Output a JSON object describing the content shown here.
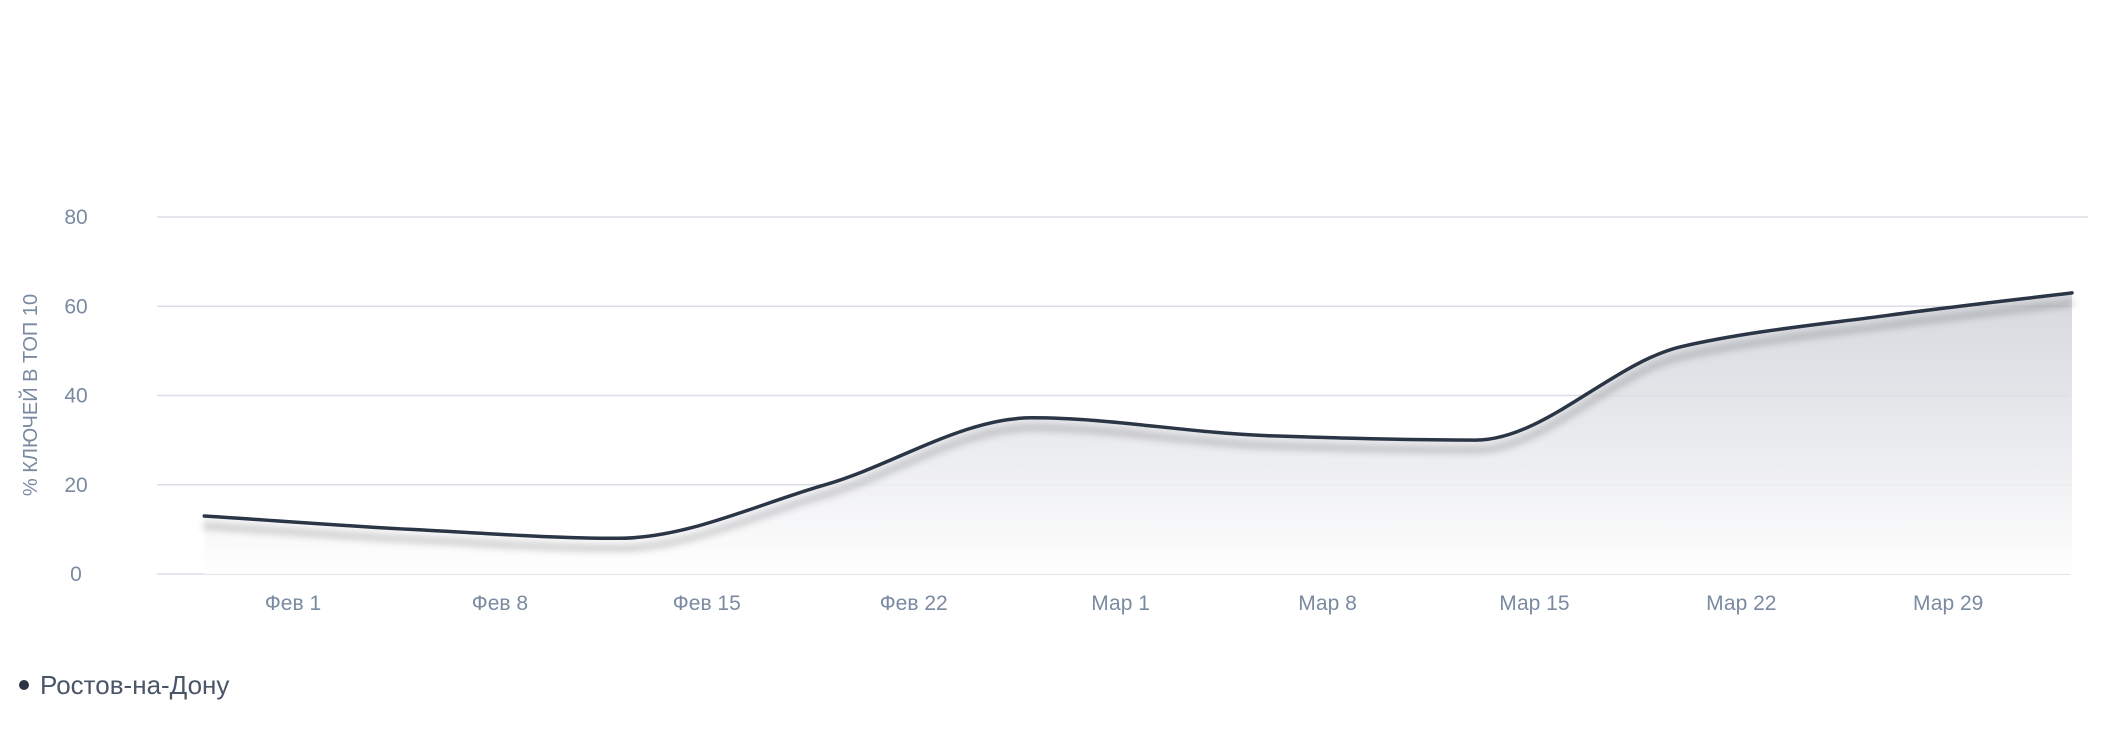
{
  "chart_data": {
    "type": "area",
    "title": "",
    "xlabel": "",
    "ylabel": "% КЛЮЧЕЙ В ТОП 10",
    "ylim": [
      0,
      80
    ],
    "yticks": [
      0,
      20,
      40,
      60,
      80
    ],
    "grid": true,
    "legend_position": "bottom-left",
    "x_ticks": [
      "Фев 1",
      "Фев 8",
      "Фев 15",
      "Фев 22",
      "Мар 1",
      "Мар 8",
      "Мар 15",
      "Мар 22",
      "Мар 29"
    ],
    "x": [
      "Jan 29",
      "Feb 5",
      "Feb 12",
      "Feb 19",
      "Feb 26",
      "Mar 5",
      "Mar 12",
      "Mar 19",
      "Mar 26",
      "Apr 2"
    ],
    "series": [
      {
        "name": "Ростов-на-Дону",
        "color": "#2b3645",
        "values": [
          13,
          10,
          8,
          20,
          35,
          31,
          30,
          51,
          58,
          63
        ]
      }
    ],
    "colors": {
      "line": "#2b3645",
      "grid": "#dadde6",
      "tick_text": "#7a8aa0"
    }
  }
}
